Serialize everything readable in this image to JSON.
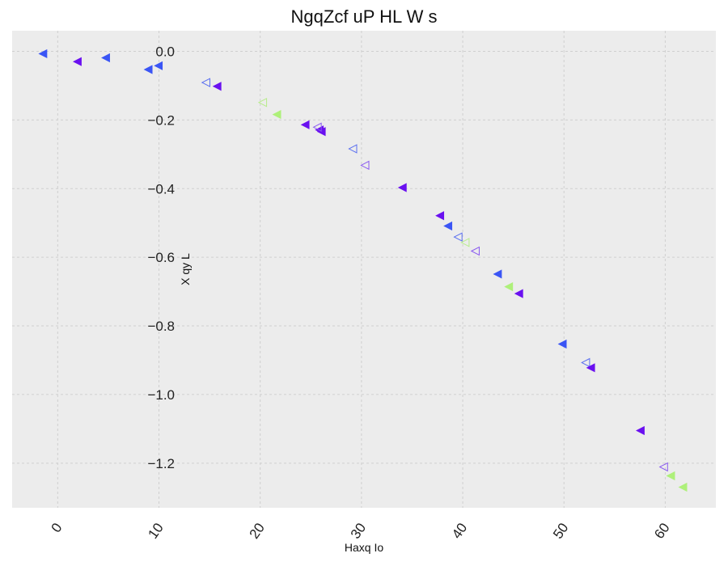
{
  "chart_data": {
    "type": "scatter",
    "title": "NgqZcf uP HL W s",
    "xlabel": "Haxq Io",
    "ylabel": "X qy L",
    "xlim": [
      -4.5,
      65
    ],
    "ylim": [
      -1.33,
      0.06
    ],
    "x_ticks": [
      0,
      10,
      20,
      30,
      40,
      50,
      60
    ],
    "x_tick_labels": [
      "0",
      "10",
      "20",
      "30",
      "40",
      "50",
      "60"
    ],
    "y_ticks": [
      0.0,
      -0.2,
      -0.4,
      -0.6,
      -0.8,
      -1.0,
      -1.2
    ],
    "y_tick_labels": [
      "0.0",
      "−0.2",
      "−0.4",
      "−0.6",
      "−0.8",
      "−1.0",
      "−1.2"
    ],
    "grid": true,
    "background_color": "#ececec",
    "marker": "triangle-left",
    "series": [
      {
        "color": "#3a55f5",
        "filled": true,
        "points": [
          [
            -1.4,
            -0.007
          ],
          [
            4.8,
            -0.019
          ],
          [
            9.0,
            -0.053
          ],
          [
            10.0,
            -0.042
          ],
          [
            38.6,
            -0.509
          ],
          [
            43.5,
            -0.649
          ],
          [
            49.9,
            -0.853
          ]
        ]
      },
      {
        "color": "#5a6ff0",
        "filled": false,
        "points": [
          [
            14.7,
            -0.091
          ],
          [
            29.2,
            -0.284
          ],
          [
            39.6,
            -0.541
          ],
          [
            52.2,
            -0.907
          ]
        ]
      },
      {
        "color": "#6a10f0",
        "filled": true,
        "points": [
          [
            2.0,
            -0.03
          ],
          [
            15.8,
            -0.102
          ],
          [
            24.5,
            -0.214
          ],
          [
            25.9,
            -0.229
          ],
          [
            26.1,
            -0.234
          ],
          [
            34.1,
            -0.397
          ],
          [
            37.8,
            -0.479
          ],
          [
            45.6,
            -0.706
          ],
          [
            52.7,
            -0.922
          ],
          [
            57.6,
            -1.105
          ]
        ]
      },
      {
        "color": "#8a5af0",
        "filled": false,
        "points": [
          [
            30.4,
            -0.332
          ],
          [
            41.3,
            -0.582
          ],
          [
            59.9,
            -1.211
          ],
          [
            25.7,
            -0.221
          ]
        ]
      },
      {
        "color": "#aef07a",
        "filled": true,
        "points": [
          [
            21.7,
            -0.184
          ],
          [
            44.6,
            -0.686
          ],
          [
            60.6,
            -1.237
          ],
          [
            61.8,
            -1.27
          ]
        ]
      },
      {
        "color": "#b8ec8c",
        "filled": false,
        "points": [
          [
            20.3,
            -0.149
          ],
          [
            40.3,
            -0.557
          ]
        ]
      }
    ]
  }
}
